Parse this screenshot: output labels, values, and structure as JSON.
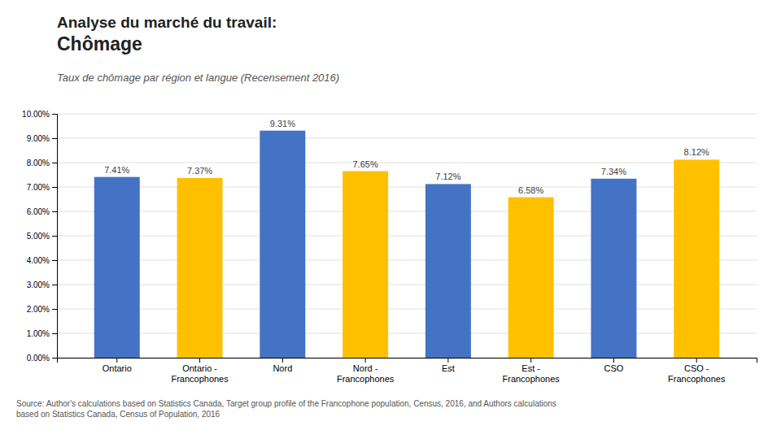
{
  "chart_data": {
    "type": "bar",
    "title": "Analyse du marché du travail:\nChômage",
    "subtitle": "Taux de chômage par région et langue (Recensement 2016)",
    "categories": [
      "Ontario",
      "Ontario -\nFrancophones",
      "Nord",
      "Nord -\nFrancophones",
      "Est",
      "Est -\nFrancophones",
      "CSO",
      "CSO -\nFrancophones"
    ],
    "values": [
      7.41,
      7.37,
      9.31,
      7.65,
      7.12,
      6.58,
      7.34,
      8.12
    ],
    "value_labels": [
      "7.41%",
      "7.37%",
      "9.31%",
      "7.65%",
      "7.12%",
      "6.58%",
      "7.34%",
      "8.12%"
    ],
    "colors": [
      "#4472C4",
      "#FFC000",
      "#4472C4",
      "#FFC000",
      "#4472C4",
      "#FFC000",
      "#4472C4",
      "#FFC000"
    ],
    "data_labels": true,
    "ylim": [
      0,
      10.0
    ],
    "yticks": [
      {
        "value": 0.0,
        "label": "0.00%"
      },
      {
        "value": 1.0,
        "label": "1.00%"
      },
      {
        "value": 2.0,
        "label": "2.00%"
      },
      {
        "value": 3.0,
        "label": "3.00%"
      },
      {
        "value": 4.0,
        "label": "4.00%"
      },
      {
        "value": 5.0,
        "label": "5.00%"
      },
      {
        "value": 6.0,
        "label": "6.00%"
      },
      {
        "value": 7.0,
        "label": "7.00%"
      },
      {
        "value": 8.0,
        "label": "8.00%"
      },
      {
        "value": 9.0,
        "label": "9.00%"
      },
      {
        "value": 10.0,
        "label": "10.00%"
      }
    ],
    "grid": true,
    "annotations": [
      "Source: Author's calculations based on Statistics Canada, Target group profile of the Francophone population, Census, 2016, and Authors calculations\nbased on Statistics Canada, Census of Population, 2016"
    ]
  }
}
